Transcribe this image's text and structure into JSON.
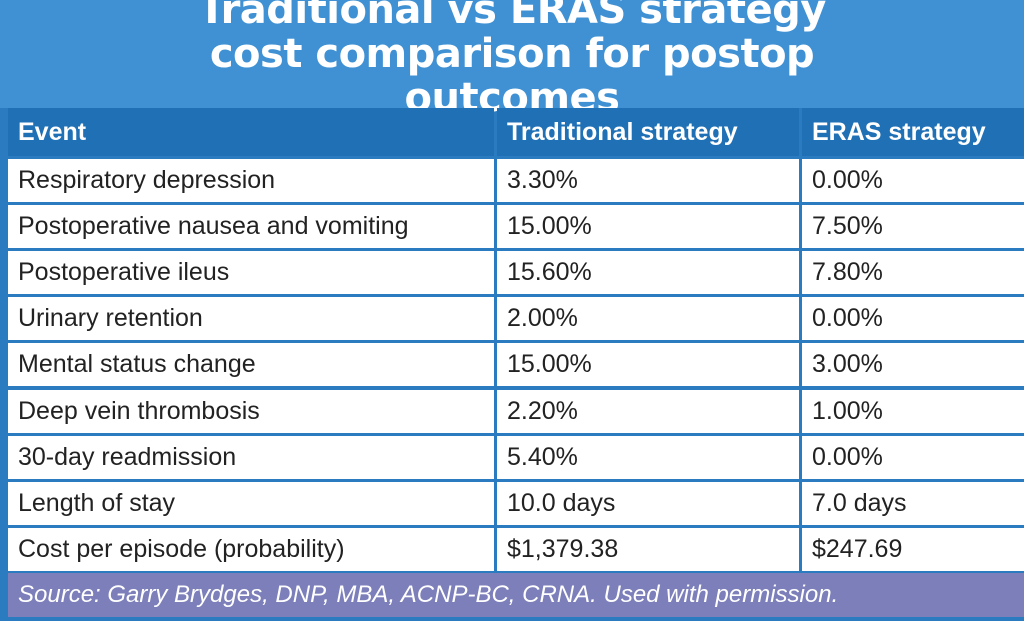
{
  "header": {
    "title": "Traditional vs ERAS strategy cost comparison for postop outcomes"
  },
  "table": {
    "columns": [
      "Event",
      "Traditional strategy",
      "ERAS strategy"
    ],
    "rows": [
      [
        "Respiratory depression",
        "3.30%",
        "0.00%"
      ],
      [
        "Postoperative nausea and vomiting",
        "15.00%",
        "7.50%"
      ],
      [
        "Postoperative ileus",
        "15.60%",
        "7.80%"
      ],
      [
        "Urinary retention",
        "2.00%",
        "0.00%"
      ],
      [
        "Mental status change",
        "15.00%",
        "3.00%"
      ],
      [
        "Deep vein thrombosis",
        "2.20%",
        "1.00%"
      ],
      [
        "30-day readmission",
        "5.40%",
        "0.00%"
      ],
      [
        "Length of stay",
        "10.0 days",
        "7.0 days"
      ],
      [
        "Cost per episode (probability)",
        "$1,379.38",
        "$247.69"
      ]
    ]
  },
  "footer": {
    "source": "Source: Garry Brydges, DNP, MBA, ACNP-BC, CRNA. Used with permission."
  }
}
